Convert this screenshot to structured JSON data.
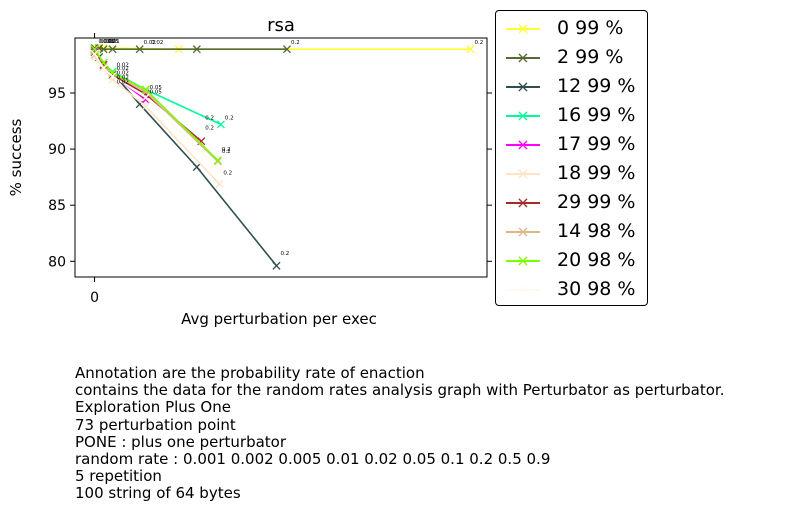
{
  "chart_data": {
    "type": "line",
    "title": "rsa",
    "xlabel": "Avg perturbation per exec",
    "ylabel": "% success",
    "xlim": [
      -1.3,
      26.1
    ],
    "ylim": [
      78.6,
      99.9
    ],
    "x_ticks": [
      0
    ],
    "x_tick_labels": [
      "0"
    ],
    "y_ticks": [
      80,
      85,
      90,
      95
    ],
    "grid": false,
    "legend_position": "outside-right",
    "series": [
      {
        "name": "0 99 %",
        "color": "#ffff33",
        "points": [
          [
            0,
            99.0
          ],
          [
            0.1,
            99.0
          ],
          [
            0.3,
            99.0
          ],
          [
            0.6,
            99.0
          ],
          [
            5.6,
            98.9
          ],
          [
            25.0,
            98.9
          ]
        ]
      },
      {
        "name": "2 99 %",
        "color": "#556b2f",
        "points": [
          [
            0,
            99.0
          ],
          [
            0.3,
            99.0
          ],
          [
            0.6,
            98.9
          ],
          [
            1.2,
            98.9
          ],
          [
            3.0,
            98.9
          ],
          [
            6.8,
            98.9
          ],
          [
            12.8,
            98.9
          ]
        ]
      },
      {
        "name": "12 99 %",
        "color": "#2f4f4f",
        "points": [
          [
            0,
            98.9
          ],
          [
            0.3,
            98.2
          ],
          [
            3.0,
            94.0
          ],
          [
            6.8,
            88.4
          ],
          [
            12.1,
            79.6
          ]
        ]
      },
      {
        "name": "16 99 %",
        "color": "#00fa9a",
        "points": [
          [
            0,
            98.7
          ],
          [
            0.6,
            97.5
          ],
          [
            1.2,
            96.9
          ],
          [
            3.4,
            95.3
          ],
          [
            8.4,
            92.2
          ]
        ]
      },
      {
        "name": "17 99 %",
        "color": "#ff00ff",
        "points": [
          [
            0,
            98.8
          ],
          [
            0.6,
            97.5
          ],
          [
            1.2,
            96.6
          ],
          [
            3.4,
            94.4
          ]
        ]
      },
      {
        "name": "18 99 %",
        "color": "#ffe4c4",
        "points": [
          [
            0,
            98.2
          ],
          [
            0.6,
            97.2
          ],
          [
            1.2,
            96.2
          ],
          [
            3.4,
            93.8
          ],
          [
            8.3,
            86.9
          ]
        ]
      },
      {
        "name": "29 99 %",
        "color": "#a52a2a",
        "points": [
          [
            0,
            98.6
          ],
          [
            0.6,
            97.5
          ],
          [
            1.2,
            96.6
          ],
          [
            3.4,
            94.9
          ],
          [
            7.1,
            90.7
          ]
        ]
      },
      {
        "name": "14 98 %",
        "color": "#deb887",
        "points": [
          [
            0,
            98.4
          ],
          [
            0.6,
            97.3
          ],
          [
            1.2,
            96.8
          ],
          [
            3.4,
            95.1
          ],
          [
            8.2,
            88.9
          ]
        ]
      },
      {
        "name": "20 98 %",
        "color": "#7cfc00",
        "points": [
          [
            0,
            98.9
          ],
          [
            0.6,
            97.7
          ],
          [
            1.2,
            96.8
          ],
          [
            3.4,
            95.3
          ],
          [
            8.2,
            89.0
          ]
        ]
      },
      {
        "name": "30 98 %",
        "color": "#fffaf0",
        "points": [
          [
            0,
            98.5
          ],
          [
            0.6,
            97.2
          ],
          [
            1.2,
            96.5
          ],
          [
            3.4,
            94.6
          ],
          [
            8.2,
            88.2
          ]
        ]
      }
    ],
    "annotations": [
      {
        "text": "0.001",
        "x": 0,
        "y": 99.0
      },
      {
        "text": "0.002",
        "x": 0.1,
        "y": 99.0
      },
      {
        "text": "0.005",
        "x": 0.3,
        "y": 99.0
      },
      {
        "text": "0.01",
        "x": 0.6,
        "y": 99.0
      },
      {
        "text": "0.02",
        "x": 3.0,
        "y": 98.9
      },
      {
        "text": "0.02",
        "x": 3.5,
        "y": 98.9
      },
      {
        "text": "0.2",
        "x": 12.8,
        "y": 98.9
      },
      {
        "text": "0.2",
        "x": 25.0,
        "y": 98.9
      },
      {
        "text": "0.02",
        "x": 1.2,
        "y": 96.9
      },
      {
        "text": "0.02",
        "x": 1.2,
        "y": 96.6
      },
      {
        "text": "0.02",
        "x": 1.2,
        "y": 96.2
      },
      {
        "text": "0.02",
        "x": 1.2,
        "y": 95.8
      },
      {
        "text": "0.02",
        "x": 1.2,
        "y": 95.4
      },
      {
        "text": "0.05",
        "x": 3.4,
        "y": 94.9
      },
      {
        "text": "0.05",
        "x": 3.4,
        "y": 94.5
      },
      {
        "text": "0.2",
        "x": 7.1,
        "y": 92.2
      },
      {
        "text": "0.2",
        "x": 8.4,
        "y": 92.2
      },
      {
        "text": "0.2",
        "x": 7.1,
        "y": 91.3
      },
      {
        "text": "0.2",
        "x": 8.2,
        "y": 89.4
      },
      {
        "text": "0.2",
        "x": 8.2,
        "y": 89.2
      },
      {
        "text": "0.2",
        "x": 8.3,
        "y": 87.3
      },
      {
        "text": "0.2",
        "x": 12.1,
        "y": 80.1
      }
    ]
  },
  "caption_lines": [
    "Annotation are the probability rate of enaction",
    "contains the data for the random rates analysis graph with Perturbator as perturbator.",
    "Exploration Plus One",
    "73 perturbation point",
    "PONE : plus one perturbator",
    "random rate : 0.001 0.002 0.005 0.01 0.02 0.05 0.1 0.2 0.5 0.9",
    "5 repetition",
    "100 string of 64 bytes"
  ]
}
